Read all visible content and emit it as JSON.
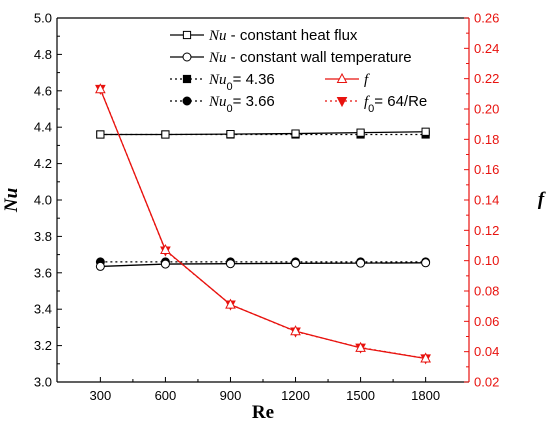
{
  "chart_data": {
    "type": "line",
    "x": [
      300,
      600,
      900,
      1200,
      1500,
      1800
    ],
    "xlabel": "Re",
    "ylabel_left": "Nu",
    "ylabel_right": "f",
    "xlim": [
      100,
      2000
    ],
    "xticks": [
      300,
      600,
      900,
      1200,
      1500,
      1800
    ],
    "ylim_left": [
      3.0,
      5.0
    ],
    "yticks_left": [
      3.0,
      3.2,
      3.4,
      3.6,
      3.8,
      4.0,
      4.2,
      4.4,
      4.6,
      4.8,
      5.0
    ],
    "ylim_right": [
      0.02,
      0.26
    ],
    "yticks_right": [
      0.02,
      0.04,
      0.06,
      0.08,
      0.1,
      0.12,
      0.14,
      0.16,
      0.18,
      0.2,
      0.22,
      0.24,
      0.26
    ],
    "grid": false,
    "legend_placement": "top-right",
    "colors": {
      "black": "#000000",
      "red": "#e8130f"
    },
    "series": [
      {
        "name_main": "Nu",
        "name_sub": "",
        "name_rest": " - constant heat flux",
        "axis": "left",
        "color": "#000000",
        "line": "solid",
        "marker": "square-open",
        "values": [
          4.36,
          4.36,
          4.362,
          4.365,
          4.37,
          4.375
        ]
      },
      {
        "name_main": "Nu",
        "name_sub": "",
        "name_rest": " - constant wall temperature",
        "axis": "left",
        "color": "#000000",
        "line": "solid",
        "marker": "circle-open",
        "values": [
          3.635,
          3.648,
          3.65,
          3.652,
          3.653,
          3.655
        ]
      },
      {
        "name_main": "Nu",
        "name_sub": "0",
        "name_rest": "= 4.36",
        "axis": "left",
        "color": "#000000",
        "line": "dotted",
        "marker": "square-filled",
        "values": [
          4.36,
          4.36,
          4.36,
          4.36,
          4.36,
          4.36
        ]
      },
      {
        "name_main": "f",
        "name_sub": "",
        "name_rest": "",
        "axis": "right",
        "color": "#e8130f",
        "line": "solid",
        "marker": "triangle-up-open",
        "values": [
          0.213,
          0.107,
          0.071,
          0.0535,
          0.0425,
          0.0355
        ]
      },
      {
        "name_main": "Nu",
        "name_sub": "0",
        "name_rest": "= 3.66",
        "axis": "left",
        "color": "#000000",
        "line": "dotted",
        "marker": "circle-filled",
        "values": [
          3.66,
          3.66,
          3.66,
          3.66,
          3.66,
          3.66
        ]
      },
      {
        "name_main": "f",
        "name_sub": "0",
        "name_rest": "= 64/Re",
        "axis": "right",
        "color": "#e8130f",
        "line": "dotted",
        "marker": "triangle-down-filled",
        "values": [
          0.2133,
          0.1067,
          0.0711,
          0.0533,
          0.0427,
          0.0356
        ]
      }
    ]
  }
}
